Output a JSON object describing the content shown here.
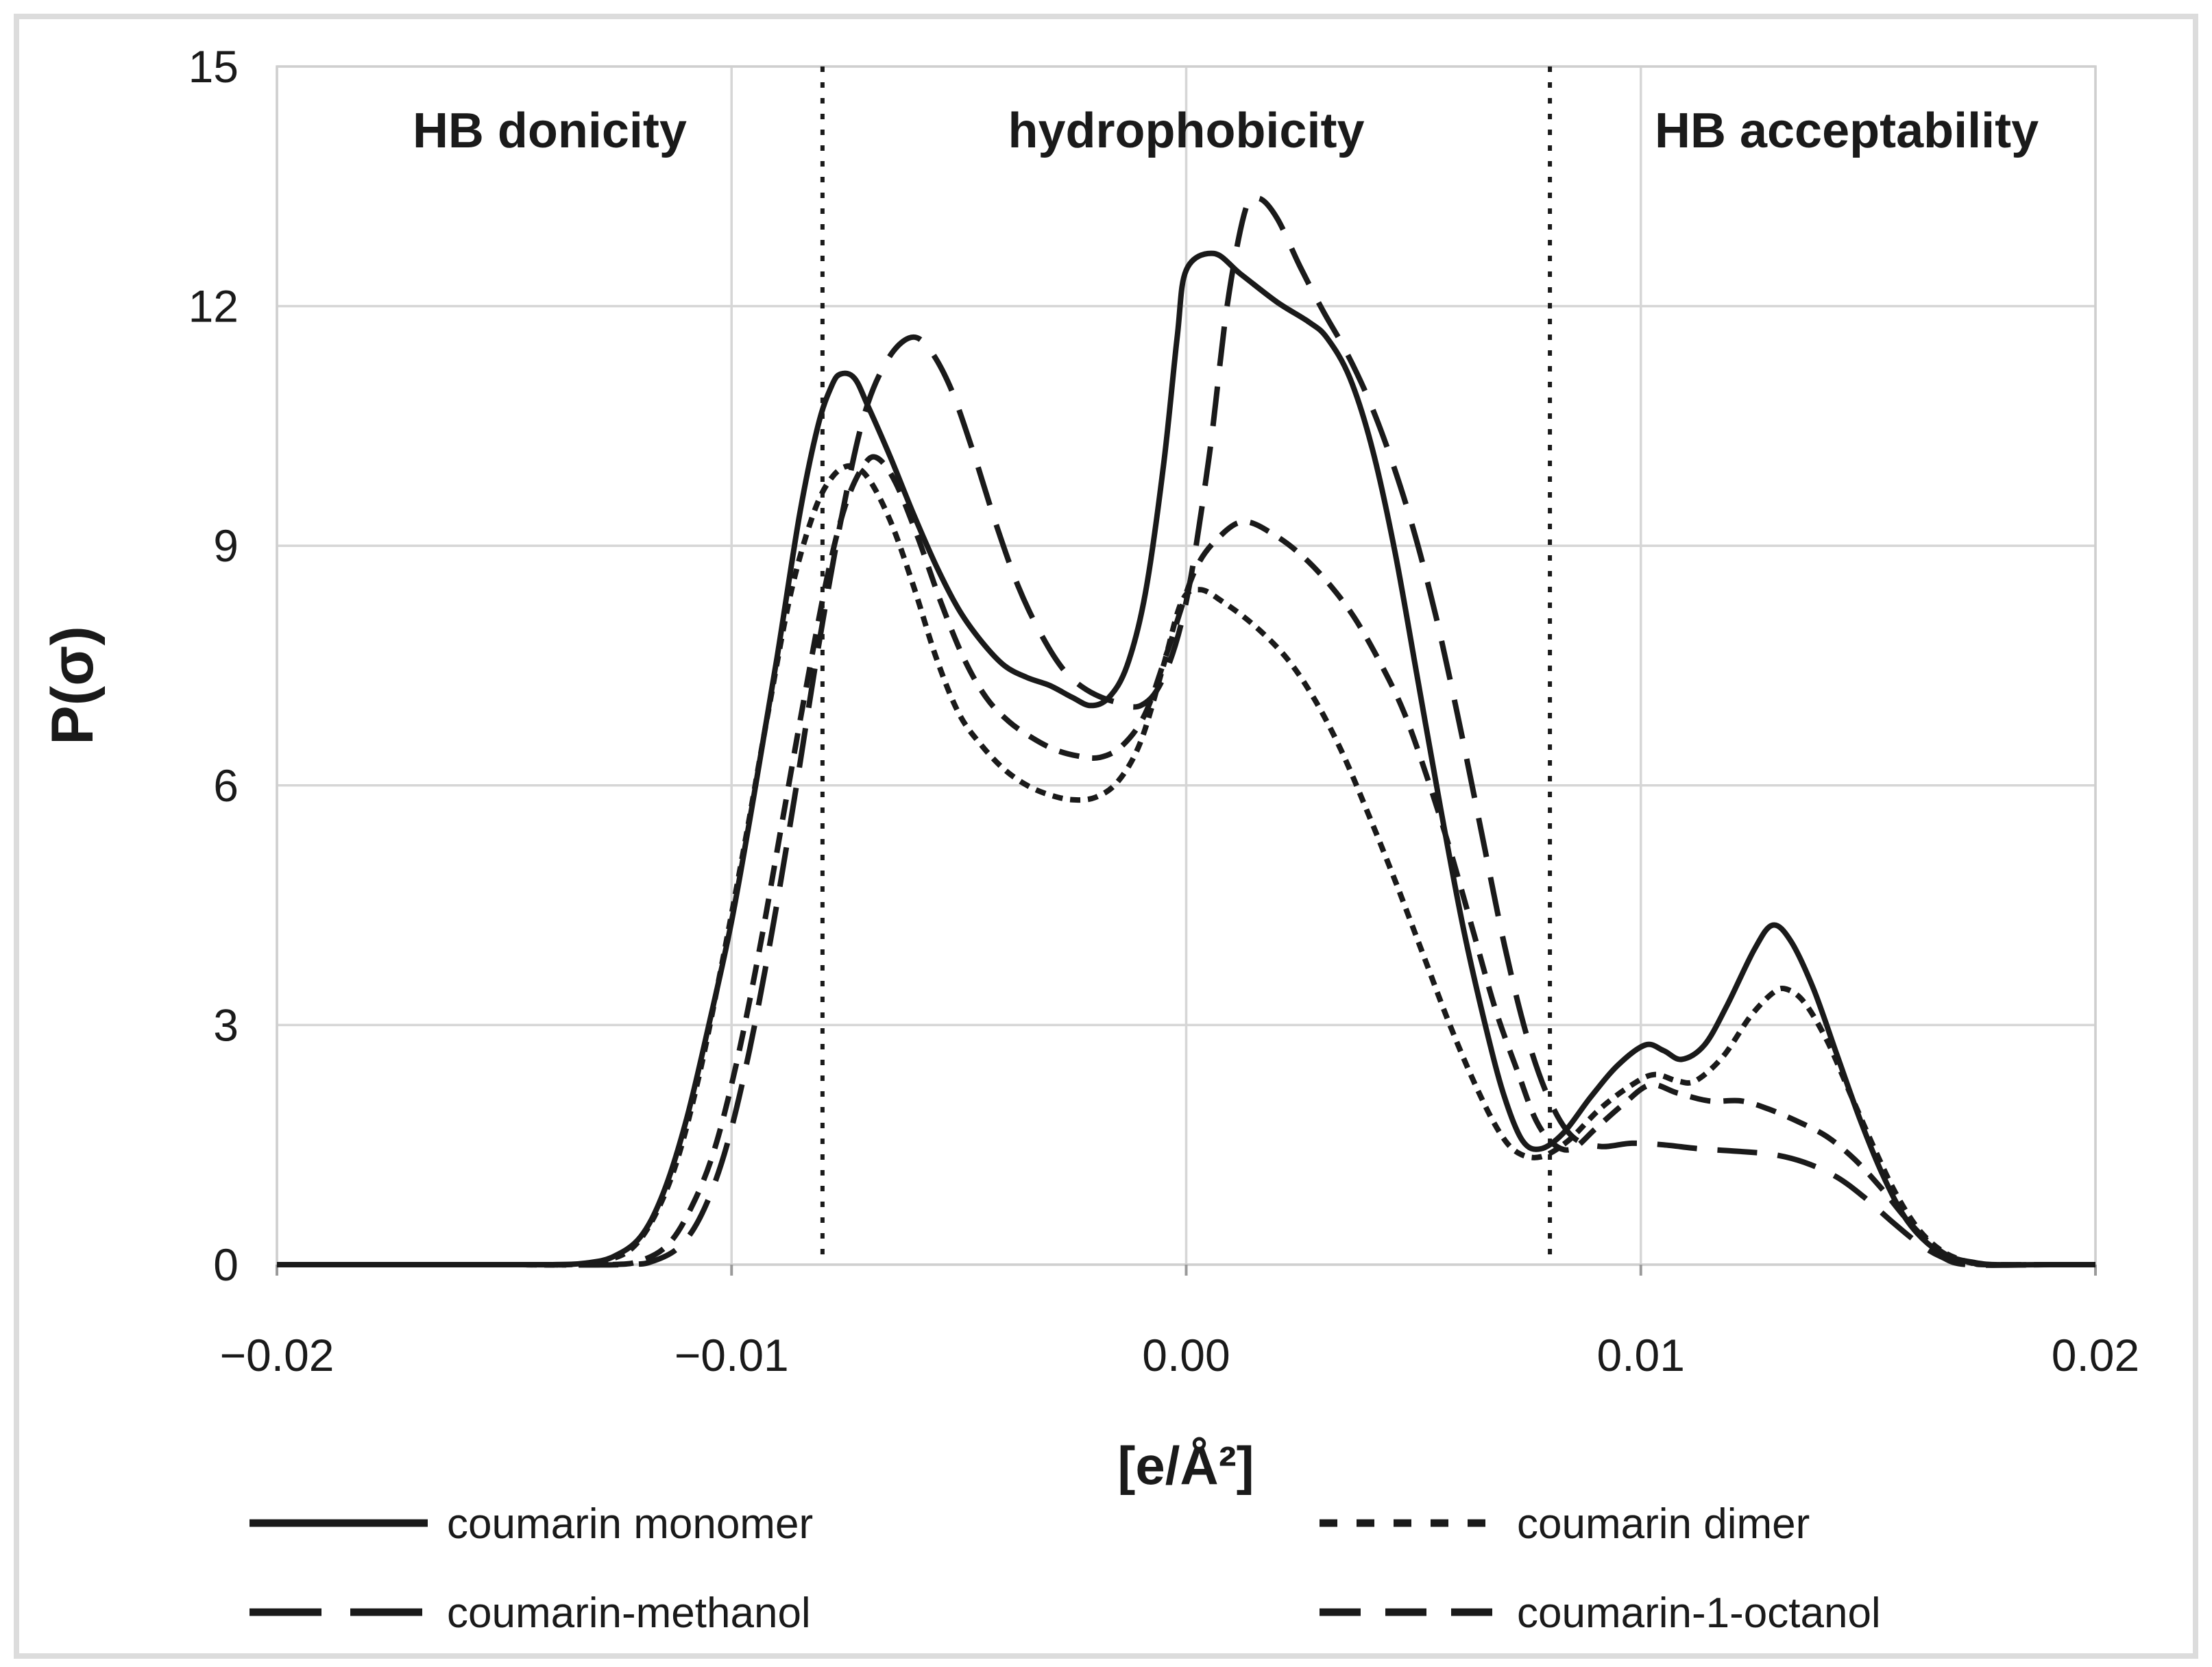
{
  "chart_data": {
    "type": "line",
    "title": "",
    "xlabel": "[e/Å²]",
    "ylabel": "P(σ)",
    "xlim": [
      -0.02,
      0.02
    ],
    "ylim": [
      0,
      15
    ],
    "x_ticks": [
      -0.02,
      -0.01,
      0,
      0.01,
      0.02
    ],
    "x_tick_labels": [
      "−0.02",
      "−0.01",
      "0.00",
      "0.01",
      "0.02"
    ],
    "y_ticks": [
      0,
      3,
      6,
      9,
      12,
      15
    ],
    "y_tick_labels": [
      "0",
      "3",
      "6",
      "9",
      "12",
      "15"
    ],
    "grid": true,
    "legend_position": "bottom",
    "region_boundaries": [
      -0.008,
      0.008
    ],
    "regions": [
      {
        "label": "HB donicity"
      },
      {
        "label": "hydrophobicity"
      },
      {
        "label": "HB acceptability"
      }
    ],
    "series": [
      {
        "name": "coumarin monomer",
        "dash": "solid",
        "points": [
          [
            -0.02,
            0
          ],
          [
            -0.016,
            0
          ],
          [
            -0.014,
            0
          ],
          [
            -0.0132,
            0.02
          ],
          [
            -0.0126,
            0.1
          ],
          [
            -0.012,
            0.35
          ],
          [
            -0.0115,
            0.9
          ],
          [
            -0.011,
            1.8
          ],
          [
            -0.0105,
            3.0
          ],
          [
            -0.01,
            4.3
          ],
          [
            -0.0095,
            5.9
          ],
          [
            -0.009,
            7.6
          ],
          [
            -0.0085,
            9.4
          ],
          [
            -0.0081,
            10.5
          ],
          [
            -0.0078,
            11.0
          ],
          [
            -0.0076,
            11.15
          ],
          [
            -0.0073,
            11.1
          ],
          [
            -0.007,
            10.75
          ],
          [
            -0.0065,
            10.1
          ],
          [
            -0.006,
            9.4
          ],
          [
            -0.0055,
            8.75
          ],
          [
            -0.005,
            8.2
          ],
          [
            -0.0045,
            7.8
          ],
          [
            -0.004,
            7.5
          ],
          [
            -0.0035,
            7.35
          ],
          [
            -0.003,
            7.25
          ],
          [
            -0.0025,
            7.1
          ],
          [
            -0.0021,
            7.0
          ],
          [
            -0.0017,
            7.1
          ],
          [
            -0.0013,
            7.5
          ],
          [
            -0.0009,
            8.4
          ],
          [
            -0.0005,
            10.0
          ],
          [
            -0.0002,
            11.6
          ],
          [
            0.0,
            12.45
          ],
          [
            0.0006,
            12.66
          ],
          [
            0.0012,
            12.4
          ],
          [
            0.002,
            12.05
          ],
          [
            0.0027,
            11.8
          ],
          [
            0.0031,
            11.6
          ],
          [
            0.0036,
            11.1
          ],
          [
            0.0041,
            10.2
          ],
          [
            0.0046,
            8.9
          ],
          [
            0.0051,
            7.3
          ],
          [
            0.0056,
            5.7
          ],
          [
            0.0061,
            4.2
          ],
          [
            0.0066,
            2.95
          ],
          [
            0.007,
            2.1
          ],
          [
            0.0074,
            1.55
          ],
          [
            0.0078,
            1.45
          ],
          [
            0.0083,
            1.65
          ],
          [
            0.0089,
            2.1
          ],
          [
            0.0095,
            2.5
          ],
          [
            0.0101,
            2.75
          ],
          [
            0.0105,
            2.68
          ],
          [
            0.0109,
            2.57
          ],
          [
            0.0114,
            2.75
          ],
          [
            0.0119,
            3.25
          ],
          [
            0.0125,
            3.95
          ],
          [
            0.0129,
            4.25
          ],
          [
            0.0133,
            4.05
          ],
          [
            0.0138,
            3.45
          ],
          [
            0.0143,
            2.65
          ],
          [
            0.0148,
            1.85
          ],
          [
            0.0153,
            1.15
          ],
          [
            0.0158,
            0.6
          ],
          [
            0.0163,
            0.27
          ],
          [
            0.0168,
            0.1
          ],
          [
            0.0173,
            0.03
          ],
          [
            0.0178,
            0
          ],
          [
            0.019,
            0
          ],
          [
            0.02,
            0
          ]
        ]
      },
      {
        "name": "coumarin dimer",
        "dash": "short-dash",
        "points": [
          [
            -0.02,
            0
          ],
          [
            -0.015,
            0
          ],
          [
            -0.0136,
            0
          ],
          [
            -0.0128,
            0.05
          ],
          [
            -0.0122,
            0.2
          ],
          [
            -0.0117,
            0.6
          ],
          [
            -0.0112,
            1.3
          ],
          [
            -0.0107,
            2.4
          ],
          [
            -0.0102,
            3.8
          ],
          [
            -0.0097,
            5.3
          ],
          [
            -0.0092,
            6.9
          ],
          [
            -0.0087,
            8.4
          ],
          [
            -0.0082,
            9.4
          ],
          [
            -0.0078,
            9.85
          ],
          [
            -0.0074,
            10.0
          ],
          [
            -0.007,
            9.85
          ],
          [
            -0.0065,
            9.3
          ],
          [
            -0.006,
            8.5
          ],
          [
            -0.0055,
            7.6
          ],
          [
            -0.005,
            6.9
          ],
          [
            -0.0045,
            6.5
          ],
          [
            -0.004,
            6.2
          ],
          [
            -0.0035,
            6.0
          ],
          [
            -0.003,
            5.88
          ],
          [
            -0.0025,
            5.82
          ],
          [
            -0.002,
            5.85
          ],
          [
            -0.0015,
            6.05
          ],
          [
            -0.001,
            6.55
          ],
          [
            -0.0005,
            7.5
          ],
          [
            -0.0001,
            8.3
          ],
          [
            0.0003,
            8.45
          ],
          [
            0.0008,
            8.3
          ],
          [
            0.0015,
            8.0
          ],
          [
            0.0022,
            7.6
          ],
          [
            0.0028,
            7.1
          ],
          [
            0.0034,
            6.45
          ],
          [
            0.004,
            5.65
          ],
          [
            0.0046,
            4.8
          ],
          [
            0.0052,
            3.9
          ],
          [
            0.0058,
            3.0
          ],
          [
            0.0064,
            2.2
          ],
          [
            0.0069,
            1.65
          ],
          [
            0.0073,
            1.4
          ],
          [
            0.0078,
            1.35
          ],
          [
            0.0084,
            1.55
          ],
          [
            0.0091,
            1.95
          ],
          [
            0.0098,
            2.25
          ],
          [
            0.0103,
            2.38
          ],
          [
            0.0108,
            2.3
          ],
          [
            0.0112,
            2.3
          ],
          [
            0.0118,
            2.6
          ],
          [
            0.0124,
            3.1
          ],
          [
            0.0129,
            3.4
          ],
          [
            0.0132,
            3.45
          ],
          [
            0.0136,
            3.28
          ],
          [
            0.0141,
            2.8
          ],
          [
            0.0146,
            2.15
          ],
          [
            0.0151,
            1.5
          ],
          [
            0.0156,
            0.9
          ],
          [
            0.0161,
            0.45
          ],
          [
            0.0166,
            0.18
          ],
          [
            0.0171,
            0.05
          ],
          [
            0.0176,
            0
          ],
          [
            0.019,
            0
          ],
          [
            0.02,
            0
          ]
        ]
      },
      {
        "name": "coumarin-methanol",
        "dash": "long-dash",
        "points": [
          [
            -0.02,
            0
          ],
          [
            -0.015,
            0
          ],
          [
            -0.0124,
            0
          ],
          [
            -0.0117,
            0.05
          ],
          [
            -0.0111,
            0.25
          ],
          [
            -0.0106,
            0.7
          ],
          [
            -0.0101,
            1.5
          ],
          [
            -0.0096,
            2.7
          ],
          [
            -0.0091,
            4.2
          ],
          [
            -0.0086,
            5.9
          ],
          [
            -0.0081,
            7.7
          ],
          [
            -0.0076,
            9.3
          ],
          [
            -0.0071,
            10.6
          ],
          [
            -0.0066,
            11.3
          ],
          [
            -0.0061,
            11.6
          ],
          [
            -0.0057,
            11.5
          ],
          [
            -0.0052,
            11.0
          ],
          [
            -0.0047,
            10.2
          ],
          [
            -0.0042,
            9.3
          ],
          [
            -0.0037,
            8.5
          ],
          [
            -0.0032,
            7.9
          ],
          [
            -0.0027,
            7.45
          ],
          [
            -0.0022,
            7.2
          ],
          [
            -0.0016,
            7.05
          ],
          [
            -0.001,
            7.0
          ],
          [
            -0.0005,
            7.35
          ],
          [
            0.0,
            8.3
          ],
          [
            0.0005,
            10.1
          ],
          [
            0.0009,
            12.0
          ],
          [
            0.0013,
            13.2
          ],
          [
            0.0016,
            13.35
          ],
          [
            0.002,
            13.1
          ],
          [
            0.0025,
            12.5
          ],
          [
            0.003,
            11.95
          ],
          [
            0.0035,
            11.45
          ],
          [
            0.004,
            10.85
          ],
          [
            0.0045,
            10.1
          ],
          [
            0.005,
            9.2
          ],
          [
            0.0055,
            8.1
          ],
          [
            0.006,
            6.8
          ],
          [
            0.0065,
            5.4
          ],
          [
            0.007,
            4.0
          ],
          [
            0.0075,
            2.85
          ],
          [
            0.008,
            2.05
          ],
          [
            0.0085,
            1.6
          ],
          [
            0.0091,
            1.48
          ],
          [
            0.0098,
            1.52
          ],
          [
            0.0105,
            1.5
          ],
          [
            0.0113,
            1.45
          ],
          [
            0.0121,
            1.42
          ],
          [
            0.0129,
            1.38
          ],
          [
            0.0136,
            1.28
          ],
          [
            0.0143,
            1.1
          ],
          [
            0.0149,
            0.85
          ],
          [
            0.0155,
            0.55
          ],
          [
            0.0161,
            0.27
          ],
          [
            0.0166,
            0.1
          ],
          [
            0.0172,
            0
          ],
          [
            0.019,
            0
          ],
          [
            0.02,
            0
          ]
        ]
      },
      {
        "name": "coumarin-1-octanol",
        "dash": "medium-dash",
        "points": [
          [
            -0.02,
            0
          ],
          [
            -0.015,
            0
          ],
          [
            -0.0127,
            0
          ],
          [
            -0.012,
            0.05
          ],
          [
            -0.0114,
            0.25
          ],
          [
            -0.0109,
            0.7
          ],
          [
            -0.0104,
            1.4
          ],
          [
            -0.0099,
            2.5
          ],
          [
            -0.0094,
            3.9
          ],
          [
            -0.0089,
            5.5
          ],
          [
            -0.0084,
            7.1
          ],
          [
            -0.0079,
            8.6
          ],
          [
            -0.0075,
            9.5
          ],
          [
            -0.0071,
            10.0
          ],
          [
            -0.0068,
            10.1
          ],
          [
            -0.0064,
            9.8
          ],
          [
            -0.0059,
            9.1
          ],
          [
            -0.0054,
            8.3
          ],
          [
            -0.0049,
            7.6
          ],
          [
            -0.0044,
            7.1
          ],
          [
            -0.0039,
            6.8
          ],
          [
            -0.0034,
            6.6
          ],
          [
            -0.0029,
            6.45
          ],
          [
            -0.0024,
            6.37
          ],
          [
            -0.0019,
            6.35
          ],
          [
            -0.0014,
            6.5
          ],
          [
            -0.0009,
            6.9
          ],
          [
            -0.0004,
            7.7
          ],
          [
            0.0002,
            8.7
          ],
          [
            0.0008,
            9.15
          ],
          [
            0.0013,
            9.3
          ],
          [
            0.0019,
            9.15
          ],
          [
            0.0025,
            8.9
          ],
          [
            0.0031,
            8.55
          ],
          [
            0.0037,
            8.1
          ],
          [
            0.0043,
            7.5
          ],
          [
            0.0048,
            6.9
          ],
          [
            0.0053,
            6.1
          ],
          [
            0.0058,
            5.2
          ],
          [
            0.0063,
            4.2
          ],
          [
            0.0068,
            3.2
          ],
          [
            0.0073,
            2.4
          ],
          [
            0.0077,
            1.8
          ],
          [
            0.0081,
            1.5
          ],
          [
            0.0085,
            1.45
          ],
          [
            0.009,
            1.7
          ],
          [
            0.0096,
            2.0
          ],
          [
            0.0102,
            2.25
          ],
          [
            0.0108,
            2.15
          ],
          [
            0.0115,
            2.05
          ],
          [
            0.0122,
            2.05
          ],
          [
            0.0128,
            1.95
          ],
          [
            0.0135,
            1.78
          ],
          [
            0.0141,
            1.6
          ],
          [
            0.0147,
            1.32
          ],
          [
            0.0153,
            0.95
          ],
          [
            0.0158,
            0.6
          ],
          [
            0.0163,
            0.3
          ],
          [
            0.0168,
            0.1
          ],
          [
            0.0173,
            0.02
          ],
          [
            0.0176,
            0
          ],
          [
            0.019,
            0
          ],
          [
            0.02,
            0
          ]
        ]
      }
    ],
    "legend": [
      {
        "label": "coumarin monomer",
        "dash": "solid",
        "col": 0,
        "row": 0
      },
      {
        "label": "coumarin dimer",
        "dash": "short-dash",
        "col": 1,
        "row": 0
      },
      {
        "label": "coumarin-methanol",
        "dash": "long-dash",
        "col": 0,
        "row": 1
      },
      {
        "label": "coumarin-1-octanol",
        "dash": "medium-dash",
        "col": 1,
        "row": 1
      }
    ]
  },
  "colors": {
    "line": "#1a1a1a",
    "grid": "#d6d6d6",
    "plot_border": "#cfcfcf",
    "figure_border": "#dcdcdc",
    "tick_mark": "#9a9a9a",
    "x_title": "#696969",
    "text": "#1a1a1a"
  }
}
